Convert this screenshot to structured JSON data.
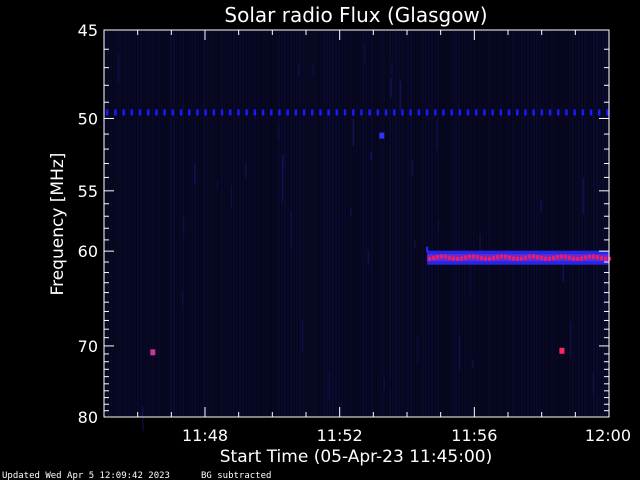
{
  "chart_data": {
    "type": "heatmap",
    "title": "Solar radio Flux (Glasgow)",
    "xlabel": "Start Time (05-Apr-23 11:45:00)",
    "ylabel": "Frequency [MHz]",
    "x_start_minutes": 0,
    "x_end_minutes": 15,
    "xlim_time": [
      "11:45:00",
      "12:00:00"
    ],
    "x_ticks": [
      {
        "label": "11:48",
        "minute": 3
      },
      {
        "label": "11:52",
        "minute": 7
      },
      {
        "label": "11:56",
        "minute": 11
      },
      {
        "label": "12:00",
        "minute": 15
      }
    ],
    "ylim": [
      80,
      45
    ],
    "y_ticks": [
      45,
      50,
      55,
      60,
      70,
      80
    ],
    "y_scale": "reciprocal",
    "colors": {
      "background": "#000000",
      "plot_background": "#06061a",
      "axis": "#ffffff",
      "interference_line": "#1a1aff",
      "burst_core": "#ff1a5c",
      "burst_halo": "#2a2aff"
    },
    "features": {
      "constant_band": {
        "freq_mhz": 49.6,
        "start_min": 0,
        "end_min": 15,
        "intensity": "medium"
      },
      "main_emission_band": {
        "freq_mhz": 60.6,
        "start_min": 9.6,
        "end_min": 15,
        "intensity": "high"
      },
      "point_sources": [
        {
          "freq_mhz": 51.1,
          "time_min": 8.25,
          "color": "#3333ff"
        },
        {
          "freq_mhz": 70.8,
          "time_min": 1.45,
          "color": "#cc3399"
        },
        {
          "freq_mhz": 70.6,
          "time_min": 13.6,
          "color": "#ff2266"
        }
      ]
    }
  },
  "footer": {
    "updated": "Updated Wed Apr  5 12:09:42 2023",
    "note": "BG subtracted"
  }
}
